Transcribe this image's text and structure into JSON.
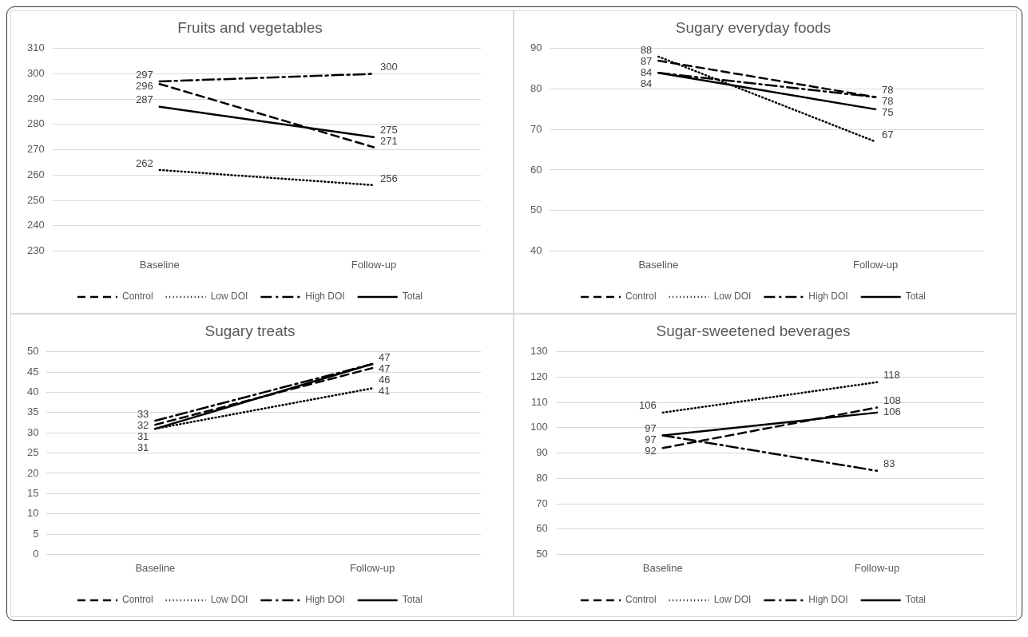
{
  "chart_data": [
    {
      "type": "line",
      "title": "Fruits and vegetables",
      "categories": [
        "Baseline",
        "Follow-up"
      ],
      "ylim": [
        230,
        310
      ],
      "yticks": [
        230,
        240,
        250,
        260,
        270,
        280,
        290,
        300,
        310
      ],
      "grid": "y",
      "legend": "bottom",
      "marker": "none",
      "data_labels": true,
      "series": [
        {
          "name": "Control",
          "color": "#000000",
          "line_style": "dashed",
          "values": [
            296,
            271
          ]
        },
        {
          "name": "Low DOI",
          "color": "#000000",
          "line_style": "dotted",
          "values": [
            262,
            256
          ]
        },
        {
          "name": "High DOI",
          "color": "#000000",
          "line_style": "dashdot",
          "values": [
            297,
            300
          ]
        },
        {
          "name": "Total",
          "color": "#000000",
          "line_style": "solid",
          "values": [
            287,
            275
          ]
        }
      ]
    },
    {
      "type": "line",
      "title": "Sugary everyday foods",
      "categories": [
        "Baseline",
        "Follow-up"
      ],
      "ylim": [
        40,
        90
      ],
      "yticks": [
        40,
        50,
        60,
        70,
        80,
        90
      ],
      "grid": "y",
      "legend": "bottom",
      "marker": "none",
      "data_labels": true,
      "series": [
        {
          "name": "Control",
          "color": "#000000",
          "line_style": "dashed",
          "values": [
            87,
            78
          ]
        },
        {
          "name": "Low DOI",
          "color": "#000000",
          "line_style": "dotted",
          "values": [
            88,
            67
          ]
        },
        {
          "name": "High DOI",
          "color": "#000000",
          "line_style": "dashdot",
          "values": [
            84,
            78
          ]
        },
        {
          "name": "Total",
          "color": "#000000",
          "line_style": "solid",
          "values": [
            84,
            75
          ]
        }
      ]
    },
    {
      "type": "line",
      "title": "Sugary treats",
      "categories": [
        "Baseline",
        "Follow-up"
      ],
      "ylim": [
        0,
        50
      ],
      "yticks": [
        0,
        5,
        10,
        15,
        20,
        25,
        30,
        35,
        40,
        45,
        50
      ],
      "grid": "y",
      "legend": "bottom",
      "marker": "none",
      "data_labels": true,
      "series": [
        {
          "name": "Control",
          "color": "#000000",
          "line_style": "dashed",
          "values": [
            32,
            46
          ]
        },
        {
          "name": "Low DOI",
          "color": "#000000",
          "line_style": "dotted",
          "values": [
            31,
            41
          ]
        },
        {
          "name": "High DOI",
          "color": "#000000",
          "line_style": "dashdot",
          "values": [
            33,
            47
          ]
        },
        {
          "name": "Total",
          "color": "#000000",
          "line_style": "solid",
          "values": [
            31,
            47
          ]
        }
      ]
    },
    {
      "type": "line",
      "title": "Sugar-sweetened beverages",
      "categories": [
        "Baseline",
        "Follow-up"
      ],
      "ylim": [
        50,
        130
      ],
      "yticks": [
        50,
        60,
        70,
        80,
        90,
        100,
        110,
        120,
        130
      ],
      "grid": "y",
      "legend": "bottom",
      "marker": "none",
      "data_labels": true,
      "series": [
        {
          "name": "Control",
          "color": "#000000",
          "line_style": "dashed",
          "values": [
            92,
            108
          ]
        },
        {
          "name": "Low DOI",
          "color": "#000000",
          "line_style": "dotted",
          "values": [
            106,
            118
          ]
        },
        {
          "name": "High DOI",
          "color": "#000000",
          "line_style": "dashdot",
          "values": [
            97,
            83
          ]
        },
        {
          "name": "Total",
          "color": "#000000",
          "line_style": "solid",
          "values": [
            97,
            106
          ]
        }
      ]
    }
  ]
}
